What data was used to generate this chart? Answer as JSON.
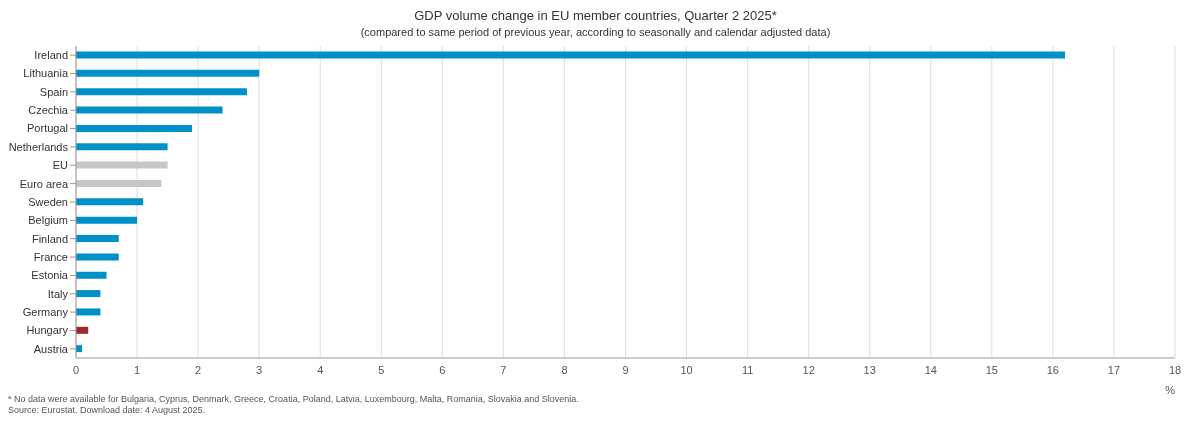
{
  "chart_data": {
    "type": "bar",
    "orientation": "horizontal",
    "title": "GDP volume change in EU member countries, Quarter 2 2025*",
    "subtitle": "(compared to same period of previous year, according to seasonally and calendar adjusted data)",
    "xlabel": "%",
    "categories": [
      "Ireland",
      "Lithuania",
      "Spain",
      "Czechia",
      "Portugal",
      "Netherlands",
      "EU",
      "Euro area",
      "Sweden",
      "Belgium",
      "Finland",
      "France",
      "Estonia",
      "Italy",
      "Germany",
      "Hungary",
      "Austria"
    ],
    "values": [
      16.2,
      3.0,
      2.8,
      2.4,
      1.9,
      1.5,
      1.5,
      1.4,
      1.1,
      1.0,
      0.7,
      0.7,
      0.5,
      0.4,
      0.4,
      0.2,
      0.1
    ],
    "colors": [
      "#0090c8",
      "#0090c8",
      "#0090c8",
      "#0090c8",
      "#0090c8",
      "#0090c8",
      "#c4c6c8",
      "#c4c6c8",
      "#0090c8",
      "#0090c8",
      "#0090c8",
      "#0090c8",
      "#0090c8",
      "#0090c8",
      "#0090c8",
      "#a0292d",
      "#0090c8"
    ],
    "xlim": [
      0,
      18
    ],
    "xticks": [
      0,
      1,
      2,
      3,
      4,
      5,
      6,
      7,
      8,
      9,
      10,
      11,
      12,
      13,
      14,
      15,
      16,
      17,
      18
    ],
    "grid": "x",
    "annotations": [
      "* No data were available for Bulgaria, Cyprus, Denmark, Greece, Croatia, Poland, Latvia, Luxembourg, Malta, Romania, Slovakia and Slovenia.",
      "Source: Eurostat. Download date: 4 August 2025."
    ]
  }
}
